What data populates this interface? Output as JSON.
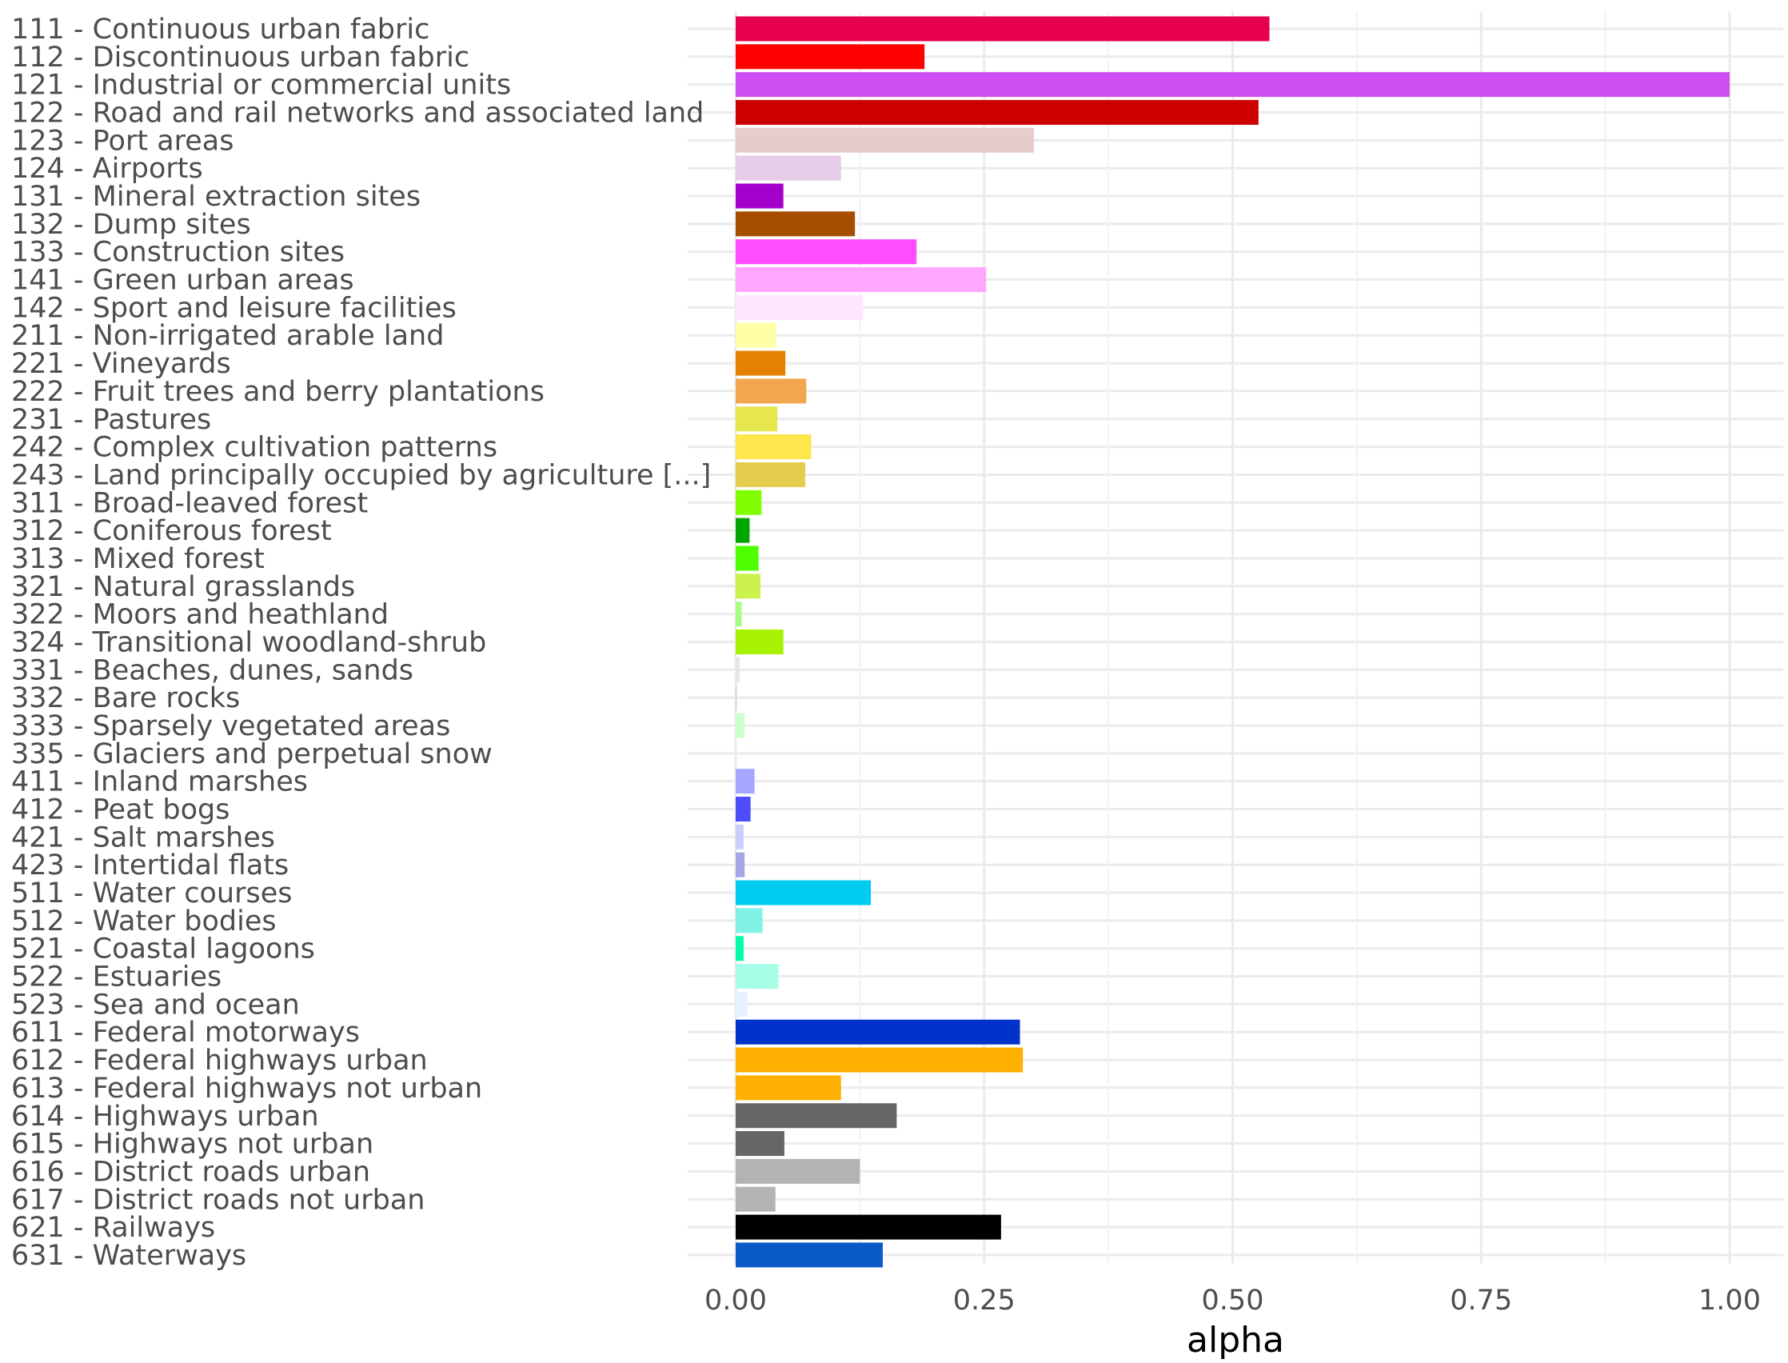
{
  "chart_data": {
    "type": "bar",
    "orientation": "horizontal",
    "title": "",
    "xlabel": "alpha",
    "ylabel": "",
    "xlim": [
      0,
      1
    ],
    "xticks": [
      "0.00",
      "0.25",
      "0.50",
      "0.75",
      "1.00"
    ],
    "grid": true,
    "legend": "none",
    "categories": [
      "111 - Continuous urban fabric",
      "112 - Discontinuous urban fabric",
      "121 - Industrial or commercial units",
      "122 - Road and rail networks and associated land",
      "123 - Port areas",
      "124 - Airports",
      "131 - Mineral extraction sites",
      "132 - Dump sites",
      "133 - Construction sites",
      "141 - Green urban areas",
      "142 - Sport and leisure facilities",
      "211 - Non-irrigated arable land",
      "221 - Vineyards",
      "222 - Fruit trees and berry plantations",
      "231 - Pastures",
      "242 - Complex cultivation patterns",
      "243 - Land principally occupied by agriculture [...]",
      "311 - Broad-leaved forest",
      "312 - Coniferous forest",
      "313 - Mixed forest",
      "321 - Natural grasslands",
      "322 - Moors and heathland",
      "324 - Transitional woodland-shrub",
      "331 - Beaches, dunes, sands",
      "332 - Bare rocks",
      "333 - Sparsely vegetated areas",
      "335 - Glaciers and perpetual snow",
      "411 - Inland marshes",
      "412 - Peat bogs",
      "421 - Salt marshes",
      "423 - Intertidal flats",
      "511 - Water courses",
      "512 - Water bodies",
      "521 - Coastal lagoons",
      "522 - Estuaries",
      "523 - Sea and ocean",
      "611 - Federal motorways",
      "612 - Federal highways urban",
      "613 - Federal highways not urban",
      "614 - Highways urban",
      "615 - Highways not urban",
      "616 - District roads urban",
      "617 - District roads not urban",
      "621 - Railways",
      "631 - Waterways"
    ],
    "values": [
      0.537,
      0.19,
      1.0,
      0.526,
      0.3,
      0.106,
      0.048,
      0.12,
      0.182,
      0.252,
      0.128,
      0.041,
      0.05,
      0.071,
      0.042,
      0.076,
      0.07,
      0.026,
      0.014,
      0.023,
      0.025,
      0.006,
      0.048,
      0.004,
      0.001,
      0.009,
      0.0,
      0.019,
      0.015,
      0.008,
      0.009,
      0.136,
      0.027,
      0.008,
      0.043,
      0.012,
      0.286,
      0.289,
      0.106,
      0.162,
      0.049,
      0.125,
      0.04,
      0.267,
      0.148
    ],
    "colors": [
      "#E6004D",
      "#FF0000",
      "#CC4DF2",
      "#CC0000",
      "#E6CCCC",
      "#E6CCE6",
      "#A600CC",
      "#A64D00",
      "#FF4DFF",
      "#FFA6FF",
      "#FFE6FF",
      "#FFFFA8",
      "#E68000",
      "#F2A64D",
      "#E6E64D",
      "#FFE64D",
      "#E6CC4D",
      "#80FF00",
      "#00A600",
      "#4DFF00",
      "#CCF24D",
      "#A6FF80",
      "#A6F200",
      "#E6E6E6",
      "#CCCCCC",
      "#CCFFCC",
      "#A6E6CC",
      "#A6A6FF",
      "#4D4DFF",
      "#CCCCFF",
      "#A6A6E6",
      "#00CCF2",
      "#80F2E6",
      "#00FFA6",
      "#A6FFE6",
      "#E6F2FF",
      "#0033CC",
      "#FFB000",
      "#FFB000",
      "#666666",
      "#666666",
      "#B3B3B3",
      "#B3B3B3",
      "#000000",
      "#0A5AC8"
    ]
  }
}
